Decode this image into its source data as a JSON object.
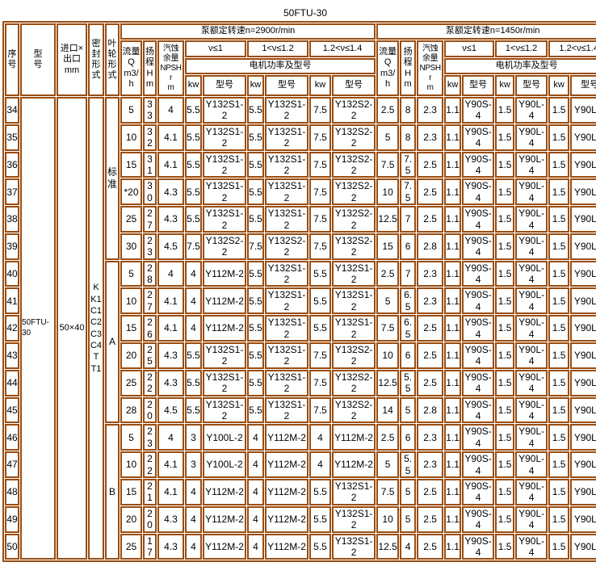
{
  "title": "50FTU-30",
  "colors": {
    "border": "#9a4d10",
    "text": "#000000",
    "page_bg": "#ffffff"
  },
  "header": {
    "seq": "序\n号",
    "model": "型\n号",
    "inlet_outlet": "进口×\n出口mm",
    "seal": "密\n封\n形\n式",
    "impeller": "叶\n轮\n形\n式",
    "speed_2900": "泵额定转速n=2900r/min",
    "speed_1450": "泵额定转速n=1450r/min",
    "flow": "流量\nQ\nm3/h",
    "head_2900": "扬\n程\nH\nm",
    "head_1450": "扬\n程\nH m",
    "npsh": "汽蚀\n余量\nNPSHr\nm",
    "visc1": "ν≤1",
    "visc2": "1<ν≤1.2",
    "visc3": "1.2<ν≤1.4",
    "motor": "电机功率及型号",
    "kw": "kw",
    "model_no": "型号"
  },
  "pump": {
    "model": "50FTU-\n30",
    "inlet_outlet": "50×40",
    "seal_types": "K\nK1\nC1\nC2\nC3\nC4\nT\nT1"
  },
  "groups": [
    {
      "impeller": "标\n准",
      "rows": [
        {
          "no": "34",
          "n2900": [
            "5",
            "33",
            "4",
            "5.5",
            "Y132S1-2",
            "5.5",
            "Y132S1-2",
            "7.5",
            "Y132S2-2"
          ],
          "n1450": [
            "2.5",
            "8",
            "2.3",
            "1.1",
            "Y90S-4",
            "1.5",
            "Y90L-4",
            "1.5",
            "Y90L-4"
          ]
        },
        {
          "no": "35",
          "n2900": [
            "10",
            "32",
            "4.1",
            "5.5",
            "Y132S1-2",
            "5.5",
            "Y132S1-2",
            "7.5",
            "Y132S2-2"
          ],
          "n1450": [
            "5",
            "8",
            "2.3",
            "1.1",
            "Y90S-4",
            "1.5",
            "Y90L-4",
            "1.5",
            "Y90L-4"
          ]
        },
        {
          "no": "36",
          "n2900": [
            "15",
            "31",
            "4.1",
            "5.5",
            "Y132S1-2",
            "5.5",
            "Y132S1-2",
            "7.5",
            "Y132S2-2"
          ],
          "n1450": [
            "7.5",
            "7.5",
            "2.5",
            "1.1",
            "Y90S-4",
            "1.5",
            "Y90L-4",
            "1.5",
            "Y90L-4"
          ]
        },
        {
          "no": "37",
          "n2900": [
            "*20",
            "30",
            "4.3",
            "5.5",
            "Y132S1-2",
            "5.5",
            "Y132S1-2",
            "7.5",
            "Y132S2-2"
          ],
          "n1450": [
            "10",
            "7.5",
            "2.5",
            "1.1",
            "Y90S-4",
            "1.5",
            "Y90L-4",
            "1.5",
            "Y90L-4"
          ]
        },
        {
          "no": "38",
          "n2900": [
            "25",
            "27",
            "4.3",
            "5.5",
            "Y132S1-2",
            "5.5",
            "Y132S1-2",
            "7.5",
            "Y132S2-2"
          ],
          "n1450": [
            "12.5",
            "7",
            "2.5",
            "1.1",
            "Y90S-4",
            "1.5",
            "Y90L-4",
            "1.5",
            "Y90L-4"
          ]
        },
        {
          "no": "39",
          "n2900": [
            "30",
            "23",
            "4.5",
            "7.5",
            "Y132S2-2",
            "7.5",
            "Y132S2-2",
            "7.5",
            "Y132S2-2"
          ],
          "n1450": [
            "15",
            "6",
            "2.8",
            "1.1",
            "Y90S-4",
            "1.5",
            "Y90L-4",
            "1.5",
            "Y90L-4"
          ]
        }
      ]
    },
    {
      "impeller": "A",
      "rows": [
        {
          "no": "40",
          "n2900": [
            "5",
            "28",
            "4",
            "4",
            "Y112M-2",
            "5.5",
            "Y132S1-2",
            "5.5",
            "Y132S1-2"
          ],
          "n1450": [
            "2.5",
            "7",
            "2.3",
            "1.1",
            "Y90S-4",
            "1.5",
            "Y90L-4",
            "1.5",
            "Y90L-4"
          ]
        },
        {
          "no": "41",
          "n2900": [
            "10",
            "27",
            "4.1",
            "4",
            "Y112M-2",
            "5.5",
            "Y132S1-2",
            "5.5",
            "Y132S1-2"
          ],
          "n1450": [
            "5",
            "6.5",
            "2.3",
            "1.1",
            "Y90S-4",
            "1.5",
            "Y90L-4",
            "1.5",
            "Y90L-4"
          ]
        },
        {
          "no": "42",
          "n2900": [
            "15",
            "26",
            "4.1",
            "4",
            "Y112M-2",
            "5.5",
            "Y132S1-2",
            "5.5",
            "Y132S1-2"
          ],
          "n1450": [
            "7.5",
            "6.5",
            "2.5",
            "1.1",
            "Y90S-4",
            "1.5",
            "Y90L-4",
            "1.5",
            "Y90L-4"
          ]
        },
        {
          "no": "43",
          "n2900": [
            "20",
            "25",
            "4.3",
            "5.5",
            "Y132S1-2",
            "5.5",
            "Y132S1-2",
            "7.5",
            "Y132S2-2"
          ],
          "n1450": [
            "10",
            "6",
            "2.5",
            "1.1",
            "Y90S-4",
            "1.5",
            "Y90L-4",
            "1.5",
            "Y90L-4"
          ]
        },
        {
          "no": "44",
          "n2900": [
            "25",
            "22",
            "4.3",
            "5.5",
            "Y132S1-2",
            "5.5",
            "Y132S1-2",
            "7.5",
            "Y132S2-2"
          ],
          "n1450": [
            "12.5",
            "5.5",
            "2.5",
            "1.1",
            "Y90S-4",
            "1.5",
            "Y90L-4",
            "1.5",
            "Y90L-4"
          ]
        },
        {
          "no": "45",
          "n2900": [
            "28",
            "20",
            "4.5",
            "5.5",
            "Y132S1-2",
            "5.5",
            "Y132S1-2",
            "7.5",
            "Y132S2-2"
          ],
          "n1450": [
            "14",
            "5",
            "2.8",
            "1.1",
            "Y90S-4",
            "1.5",
            "Y90L-4",
            "1.5",
            "Y90L-4"
          ]
        }
      ]
    },
    {
      "impeller": "B",
      "rows": [
        {
          "no": "46",
          "n2900": [
            "5",
            "23",
            "4",
            "3",
            "Y100L-2",
            "4",
            "Y112M-2",
            "4",
            "Y112M-2"
          ],
          "n1450": [
            "2.5",
            "6",
            "2.3",
            "1.1",
            "Y90S-4",
            "1.5",
            "Y90L-4",
            "1.5",
            "Y90L-4"
          ]
        },
        {
          "no": "47",
          "n2900": [
            "10",
            "22",
            "4.1",
            "3",
            "Y100L-2",
            "4",
            "Y112M-2",
            "4",
            "Y112M-2"
          ],
          "n1450": [
            "5",
            "5.5",
            "2.3",
            "1.1",
            "Y90S-4",
            "1.5",
            "Y90L-4",
            "1.5",
            "Y90L-4"
          ]
        },
        {
          "no": "48",
          "n2900": [
            "15",
            "21",
            "4.1",
            "4",
            "Y112M-2",
            "4",
            "Y112M-2",
            "5.5",
            "Y132S1-2"
          ],
          "n1450": [
            "7.5",
            "5",
            "2.5",
            "1.1",
            "Y90S-4",
            "1.5",
            "Y90L-4",
            "1.5",
            "Y90L-4"
          ]
        },
        {
          "no": "49",
          "n2900": [
            "20",
            "20",
            "4.3",
            "4",
            "Y112M-2",
            "4",
            "Y112M-2",
            "5.5",
            "Y132S1-2"
          ],
          "n1450": [
            "10",
            "5",
            "2.5",
            "1.1",
            "Y90S-4",
            "1.5",
            "Y90L-4",
            "1.5",
            "Y90L-4"
          ]
        },
        {
          "no": "50",
          "n2900": [
            "25",
            "17",
            "4.3",
            "4",
            "Y112M-2",
            "4",
            "Y112M-2",
            "5.5",
            "Y132S1-2"
          ],
          "n1450": [
            "12.5",
            "4",
            "2.5",
            "1.1",
            "Y90S-4",
            "1.5",
            "Y90L-4",
            "1.5",
            "Y90L-4"
          ]
        }
      ]
    }
  ]
}
